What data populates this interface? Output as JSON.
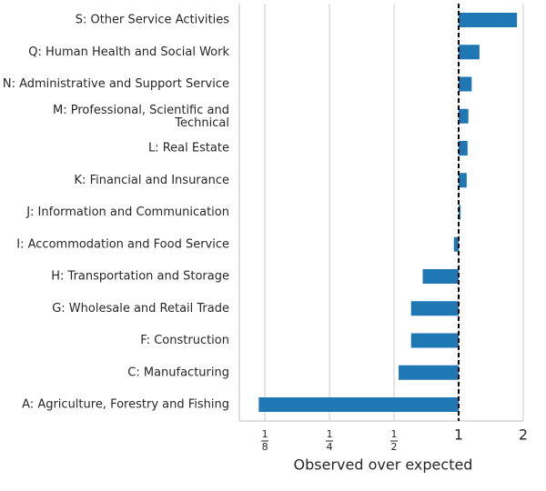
{
  "chart_data": {
    "type": "barh",
    "xlabel": "Observed over expected",
    "categories": [
      "S: Other Service Activities",
      "Q: Human Health and Social Work",
      "N: Administrative and Support Service",
      "M: Professional, Scientific and\nTechnical",
      "L: Real Estate",
      "K: Financial and Insurance",
      "J: Information and Communication",
      "I: Accommodation and Food Service",
      "H: Transportation and Storage",
      "G: Wholesale and Retail Trade",
      "F: Construction",
      "C: Manufacturing",
      "A: Agriculture, Forestry and Fishing"
    ],
    "values": [
      1.87,
      1.25,
      1.15,
      1.11,
      1.1,
      1.09,
      1.02,
      0.95,
      0.68,
      0.6,
      0.6,
      0.525,
      0.117
    ],
    "color": "#1f77b4",
    "base": 1,
    "xscale": "log2",
    "xlim": [
      0.095,
      2
    ],
    "xticks": [
      {
        "value": 0.125,
        "label": "1/8"
      },
      {
        "value": 0.25,
        "label": "1/4"
      },
      {
        "value": 0.5,
        "label": "1/2"
      },
      1,
      2
    ],
    "grid": true
  }
}
